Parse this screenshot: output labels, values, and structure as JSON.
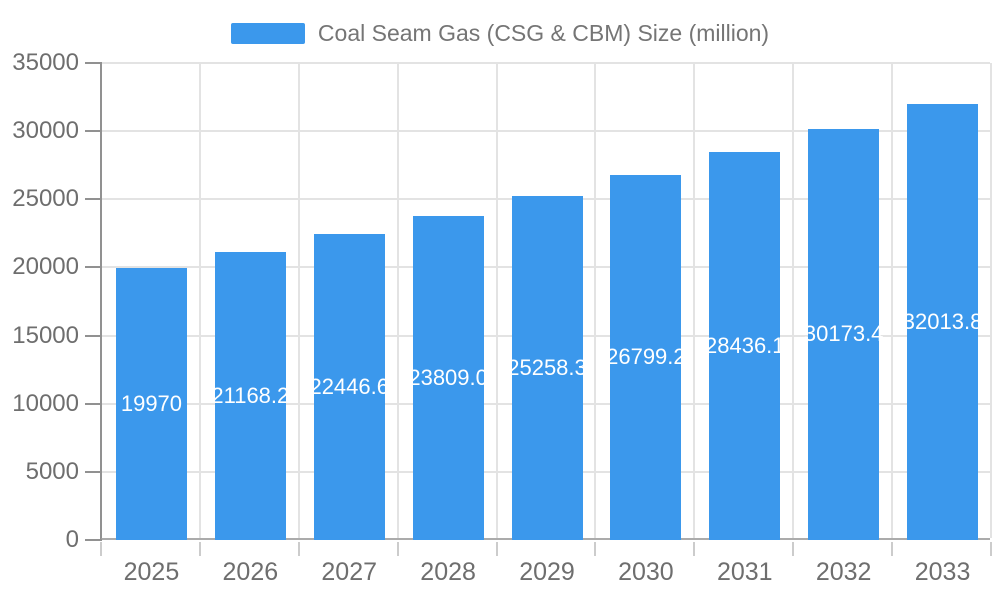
{
  "chart_data": {
    "type": "bar",
    "title": "Coal Seam Gas (CSG & CBM) Size (million)",
    "legend_position": "top",
    "categories": [
      "2025",
      "2026",
      "2027",
      "2028",
      "2029",
      "2030",
      "2031",
      "2032",
      "2033"
    ],
    "series": [
      {
        "name": "Coal Seam Gas (CSG & CBM) Size (million)",
        "values": [
          19970,
          21168.2,
          22446.6,
          23809.0,
          25258.3,
          26799.2,
          28436.1,
          30173.4,
          32013.8
        ],
        "labels": [
          "19970",
          "21168.2",
          "22446.6",
          "23809.0",
          "25258.3",
          "26799.2",
          "28436.1",
          "30173.4",
          "32013.8"
        ]
      }
    ],
    "xlabel": "",
    "ylabel": "",
    "ylim": [
      0,
      35000
    ],
    "yticks": [
      0,
      5000,
      10000,
      15000,
      20000,
      25000,
      30000,
      35000
    ],
    "ytick_labels": [
      "0",
      "5000",
      "10000",
      "15000",
      "20000",
      "25000",
      "30000",
      "35000"
    ],
    "grid": true,
    "bar_color": "#3B98EC",
    "value_label_color": "#FFFFFF",
    "axis_text_color": "#6E6E6E",
    "grid_color": "#E3E3E3",
    "axis_line_color": "#919191"
  }
}
